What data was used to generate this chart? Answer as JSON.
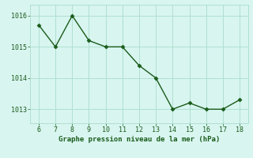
{
  "x": [
    6,
    7,
    8,
    9,
    10,
    11,
    12,
    13,
    14,
    15,
    16,
    17,
    18
  ],
  "y": [
    1015.7,
    1015.0,
    1016.0,
    1015.2,
    1015.0,
    1015.0,
    1014.4,
    1014.0,
    1013.0,
    1013.2,
    1013.0,
    1013.0,
    1013.3
  ],
  "line_color": "#1a5c1a",
  "marker": "D",
  "marker_size": 2.5,
  "linewidth": 1.0,
  "xlabel": "Graphe pression niveau de la mer (hPa)",
  "xlabel_fontsize": 6.5,
  "xlabel_color": "#1a5c1a",
  "background_color": "#d8f5f0",
  "grid_color": "#aaddcc",
  "yticks": [
    1013,
    1014,
    1015,
    1016
  ],
  "xticks": [
    6,
    7,
    8,
    9,
    10,
    11,
    12,
    13,
    14,
    15,
    16,
    17,
    18
  ],
  "ylim": [
    1012.55,
    1016.35
  ],
  "xlim": [
    5.5,
    18.5
  ],
  "tick_fontsize": 6.0,
  "tick_color": "#1a5c1a"
}
